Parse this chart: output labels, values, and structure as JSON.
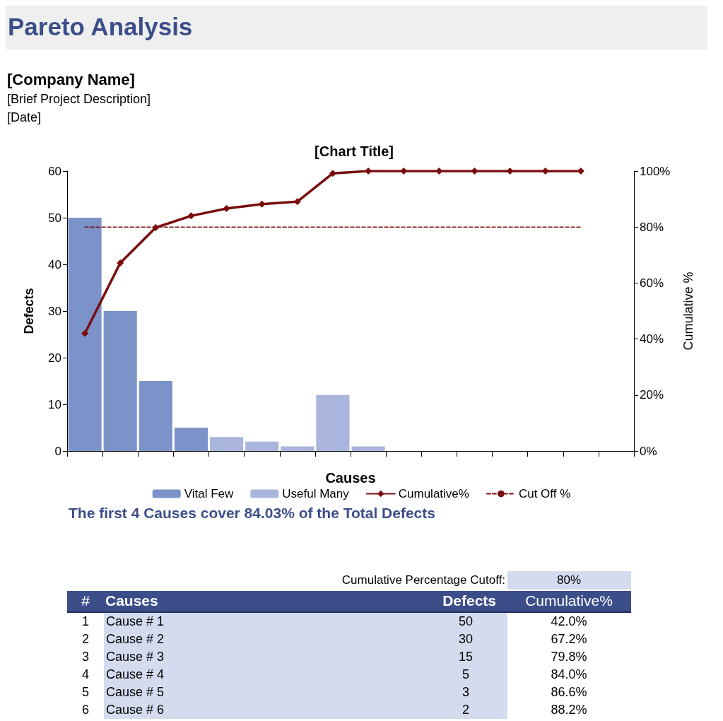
{
  "chart_data": {
    "type": "bar",
    "title": "Pareto Analysis",
    "subtitle": "[Chart Title]",
    "xlabel": "Causes",
    "ylabel": "Defects",
    "y2label": "Cumulative %",
    "categories": [
      null,
      null,
      null,
      null,
      null,
      null,
      null,
      null,
      null,
      null,
      null,
      null,
      null,
      null,
      null,
      null
    ],
    "stacked": true,
    "series": [
      {
        "name": "Vital Few",
        "color": "#7b93c9",
        "values": [
          50,
          30,
          15,
          5,
          null,
          null,
          null,
          null,
          null,
          null,
          null,
          null,
          null,
          null,
          null,
          null
        ]
      },
      {
        "name": "Useful Many",
        "color": "#a9b5dc",
        "values": [
          null,
          null,
          null,
          null,
          3,
          2,
          1,
          12,
          1,
          0,
          0,
          0,
          0,
          0,
          0,
          null
        ]
      },
      {
        "name": "Cumulative%",
        "type": "line",
        "axis": "y2",
        "color": "#7a0c0c",
        "marker": "diamond",
        "line_style": "solid",
        "values": [
          42.0,
          67.2,
          79.8,
          84.0,
          86.6,
          88.2,
          89.1,
          99.2,
          100,
          100,
          100,
          100,
          100,
          100,
          100,
          null
        ]
      },
      {
        "name": "Cut Off %",
        "type": "line",
        "axis": "y2",
        "color": "#7a0c0c",
        "marker": "none",
        "line_style": "dashed",
        "values": [
          80,
          80,
          80,
          80,
          80,
          80,
          80,
          80,
          80,
          80,
          80,
          80,
          80,
          80,
          80,
          null
        ]
      }
    ],
    "ylim": [
      0,
      60
    ],
    "yticks": [
      0,
      10,
      20,
      30,
      40,
      50,
      60
    ],
    "y2lim": [
      0,
      100
    ],
    "y2ticks": [
      {
        "value": 0,
        "label": "0%"
      },
      {
        "value": 20,
        "label": "20%"
      },
      {
        "value": 40,
        "label": "40%"
      },
      {
        "value": 60,
        "label": "60%"
      },
      {
        "value": 80,
        "label": "80%"
      },
      {
        "value": 100,
        "label": "100%"
      }
    ],
    "legend": "bottom",
    "annotations": [
      "[Company Name]",
      "[Brief Project Description]",
      "[Date]",
      "The first 4 Causes cover 84.03% of the Total Defects",
      "Cumulative Percentage Cutoff:",
      "80%",
      "#",
      "Causes",
      "Defects",
      "Cumulative%",
      "1",
      "Cause # 1",
      "50",
      "42.0%",
      "2",
      "Cause # 2",
      "30",
      "67.2%",
      "3",
      "Cause # 3",
      "15",
      "79.8%",
      "4",
      "Cause # 4",
      "5",
      "84.0%",
      "5",
      "Cause # 5",
      "3",
      "86.6%",
      "6",
      "Cause # 6",
      "2",
      "88.2%"
    ]
  }
}
